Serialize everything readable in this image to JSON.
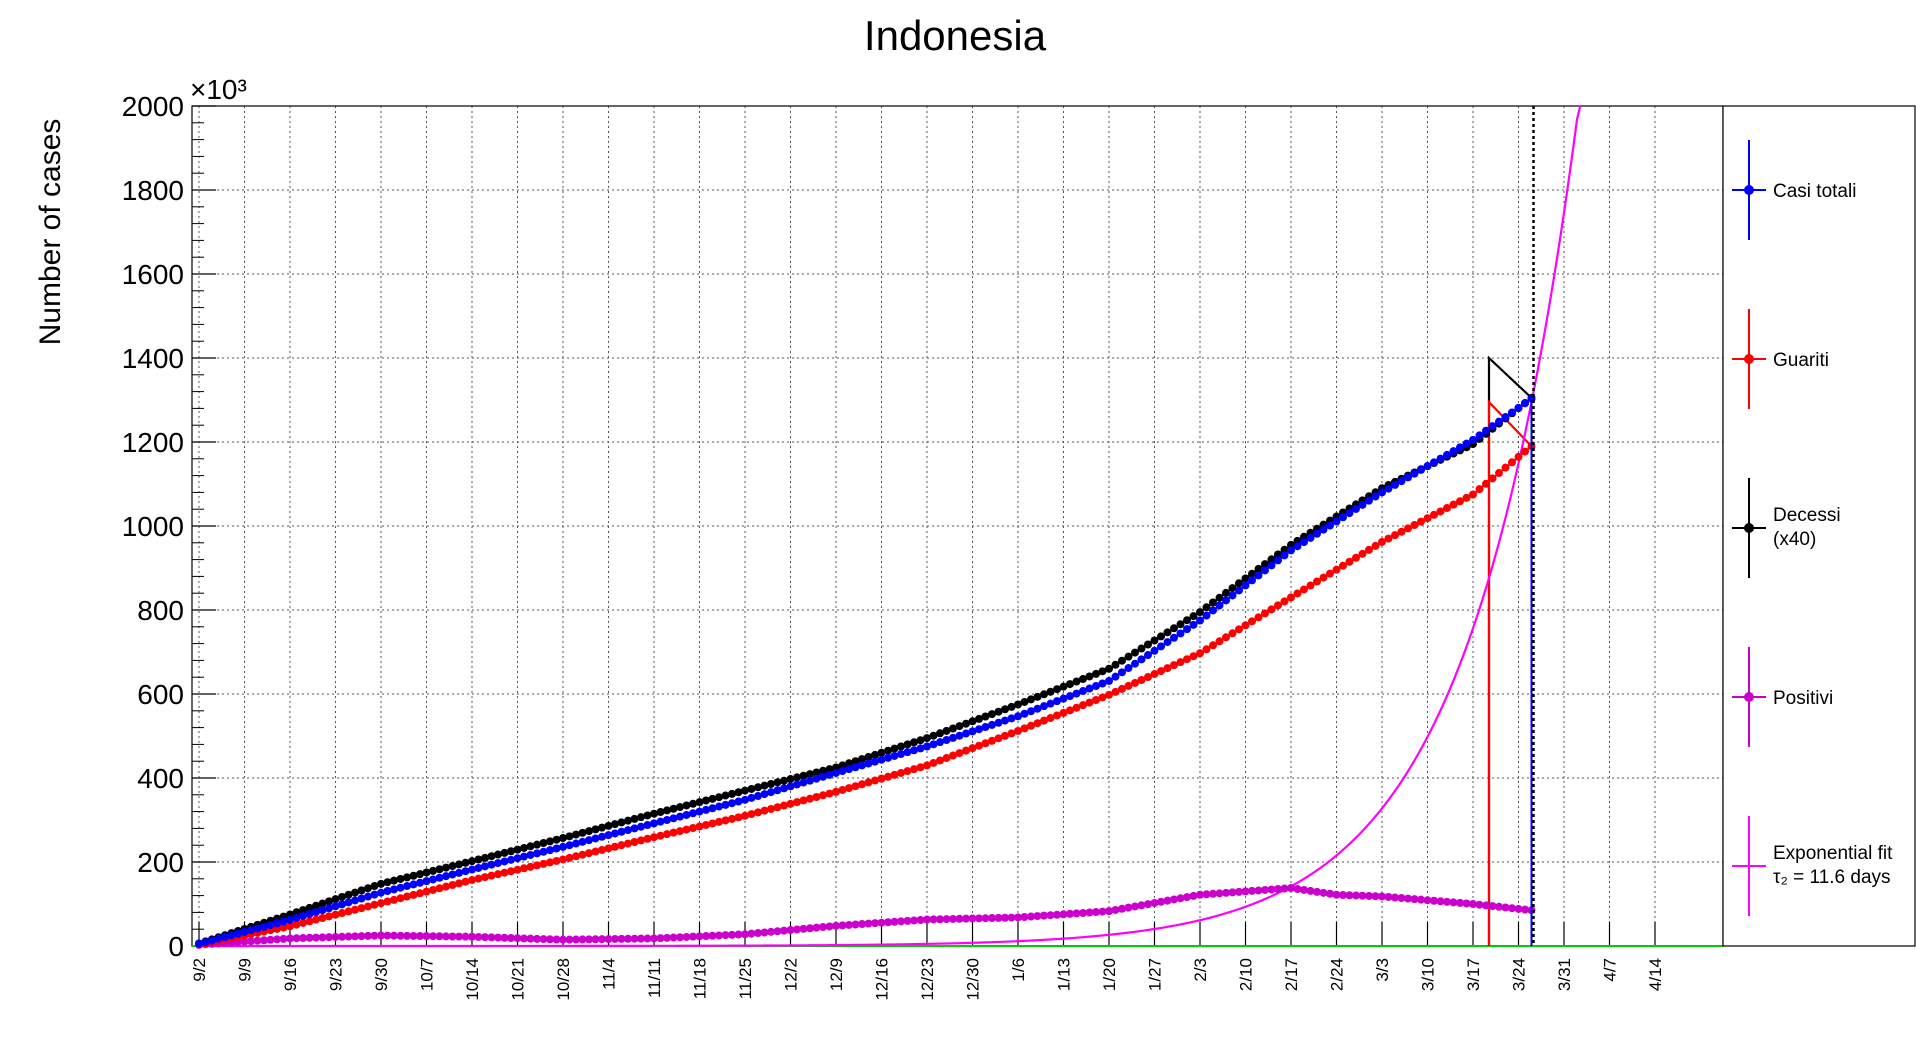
{
  "chart_data": {
    "type": "line",
    "title": "Indonesia",
    "xlabel": "",
    "ylabel": "Number of cases",
    "y_multiplier": "×10³",
    "ylim": [
      0,
      2000
    ],
    "yticks": [
      0,
      200,
      400,
      600,
      800,
      1000,
      1200,
      1400,
      1600,
      1800,
      2000
    ],
    "x_tick_labels": [
      "9/2",
      "9/9",
      "9/16",
      "9/23",
      "9/30",
      "10/7",
      "10/14",
      "10/21",
      "10/28",
      "11/4",
      "11/11",
      "11/18",
      "11/25",
      "12/2",
      "12/9",
      "12/16",
      "12/23",
      "12/30",
      "1/6",
      "1/13",
      "1/20",
      "1/27",
      "2/3",
      "2/10",
      "2/17",
      "2/24",
      "3/3",
      "3/10",
      "3/17",
      "3/24",
      "3/31",
      "4/7",
      "4/14"
    ],
    "x_unit": "days since 9/2",
    "grid": true,
    "legend_position": "right",
    "vertical_marker_day": 205,
    "series": [
      {
        "name": "Casi totali",
        "color": "#0000ff",
        "marker": "circle",
        "x": [
          0,
          14,
          28,
          42,
          56,
          70,
          84,
          98,
          112,
          126,
          140,
          154,
          168,
          182,
          196,
          205
        ],
        "values": [
          5,
          62,
          127,
          182,
          236,
          292,
          348,
          412,
          475,
          547,
          631,
          775,
          942,
          1080,
          1205,
          1303
        ]
      },
      {
        "name": "Guariti",
        "color": "#ff0000",
        "marker": "circle",
        "x": [
          0,
          14,
          28,
          42,
          56,
          70,
          84,
          98,
          112,
          126,
          140,
          154,
          168,
          182,
          196,
          205
        ],
        "values": [
          3,
          47,
          102,
          157,
          206,
          259,
          310,
          367,
          430,
          512,
          598,
          697,
          830,
          962,
          1075,
          1190
        ]
      },
      {
        "name": "Decessi (x40)",
        "color": "#000000",
        "marker": "circle",
        "x": [
          0,
          14,
          28,
          42,
          56,
          70,
          84,
          98,
          112,
          126,
          140,
          154,
          168,
          182,
          196,
          205
        ],
        "values": [
          6,
          75,
          148,
          202,
          257,
          315,
          370,
          425,
          495,
          575,
          660,
          795,
          955,
          1090,
          1195,
          1305
        ]
      },
      {
        "name": "Positivi",
        "color": "#cc00cc",
        "marker": "circle",
        "x": [
          0,
          14,
          28,
          42,
          56,
          70,
          84,
          98,
          112,
          126,
          140,
          154,
          168,
          175,
          182,
          196,
          205
        ],
        "values": [
          3,
          18,
          25,
          22,
          15,
          18,
          28,
          48,
          63,
          68,
          83,
          122,
          138,
          122,
          118,
          100,
          85
        ]
      },
      {
        "name": "Exponential fit τ₂ = 11.6 days",
        "color": "#ff00ff",
        "marker": "none",
        "tau2_days": 11.6,
        "fit_value_at_day_205": 1295
      }
    ]
  },
  "legend": [
    {
      "key": "casi",
      "line1": "Casi totali",
      "line2": "",
      "color": "#0000ff",
      "marker": true
    },
    {
      "key": "guariti",
      "line1": "Guariti",
      "line2": "",
      "color": "#ff0000",
      "marker": true
    },
    {
      "key": "decessi",
      "line1": "Decessi",
      "line2": "(x40)",
      "color": "#000000",
      "marker": true
    },
    {
      "key": "positivi",
      "line1": "Positivi",
      "line2": "",
      "color": "#cc00cc",
      "marker": true
    },
    {
      "key": "fit",
      "line1": "Exponential fit",
      "line2": "τ₂ = 11.6 days",
      "color": "#ff00ff",
      "marker": false
    }
  ]
}
